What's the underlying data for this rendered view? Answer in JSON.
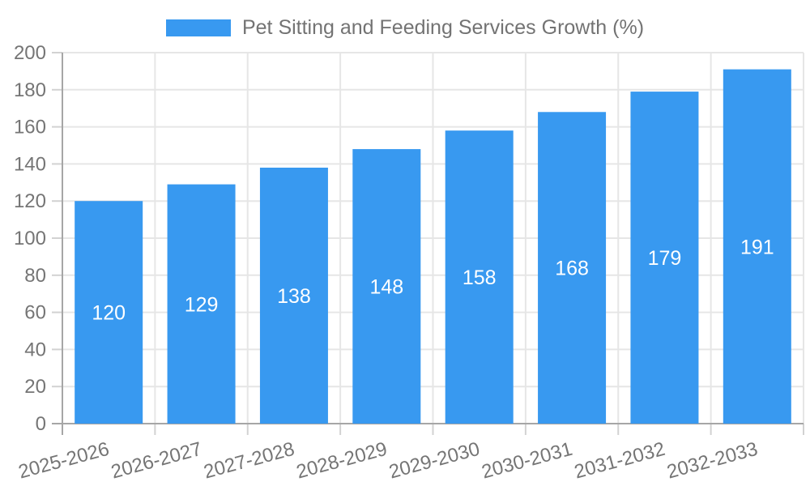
{
  "colors": {
    "bar": "#3899F0",
    "grid": "#E6E6E6",
    "tick": "#D2D2D2",
    "axis": "#A6A6A6",
    "tick_text": "#757575",
    "legend_text": "#737373",
    "value_label": "#FFFFFF",
    "background": "#FFFFFF"
  },
  "chart_data": {
    "type": "bar",
    "title": "Pet Sitting and Feeding Services Growth (%)",
    "xlabel": "",
    "ylabel": "",
    "categories": [
      "2025-2026",
      "2026-2027",
      "2027-2028",
      "2028-2029",
      "2029-2030",
      "2030-2031",
      "2031-2032",
      "2032-2033"
    ],
    "values": [
      120,
      129,
      138,
      148,
      158,
      168,
      179,
      191
    ],
    "ylim": [
      0,
      200
    ],
    "yticks": [
      0,
      20,
      40,
      60,
      80,
      100,
      120,
      140,
      160,
      180,
      200
    ],
    "grid": true,
    "legend_position": "top",
    "x_label_rotation_deg": -15
  }
}
